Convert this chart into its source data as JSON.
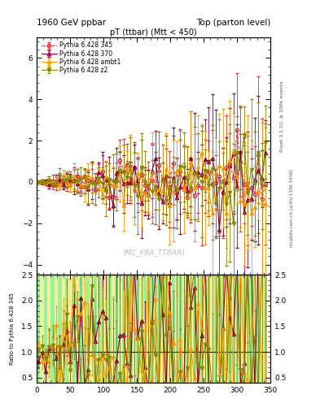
{
  "title_left": "1960 GeV ppbar",
  "title_right": "Top (parton level)",
  "plot_title": "pT (ttbar) (Mtt < 450)",
  "watermark": "(MC_FBA_TTBAR)",
  "right_label": "Rivet 3.1.10, ≥ 100k events",
  "arxiv_label": "mcplots.cern.ch [arXiv:1306.3436]",
  "ylabel_ratio": "Ratio to Pythia 6.428 345",
  "ylim_main": [
    -4.5,
    7.0
  ],
  "ylim_ratio": [
    0.4,
    2.5
  ],
  "xlim": [
    0,
    350
  ],
  "yticks_main": [
    -4,
    -2,
    0,
    2,
    4,
    6
  ],
  "yticks_ratio": [
    0.5,
    1.0,
    1.5,
    2.0,
    2.5
  ],
  "series": [
    {
      "label": "Pythia 6.428 345",
      "color": "#dd3333",
      "linestyle": "dashed",
      "marker": "o",
      "markerfacecolor": "none",
      "markersize": 3,
      "linewidth": 0.8
    },
    {
      "label": "Pythia 6.428 370",
      "color": "#880033",
      "linestyle": "solid",
      "marker": "^",
      "markerfacecolor": "none",
      "markersize": 3,
      "linewidth": 0.8
    },
    {
      "label": "Pythia 6.428 ambt1",
      "color": "#ff9900",
      "linestyle": "solid",
      "marker": "^",
      "markerfacecolor": "none",
      "markersize": 3,
      "linewidth": 0.8
    },
    {
      "label": "Pythia 6.428 z2",
      "color": "#888800",
      "linestyle": "solid",
      "marker": "v",
      "markerfacecolor": "#888800",
      "markersize": 3,
      "linewidth": 0.8
    }
  ],
  "ratio_band_colors": [
    "#88ee88",
    "#eeee88"
  ],
  "n_bins": 65
}
